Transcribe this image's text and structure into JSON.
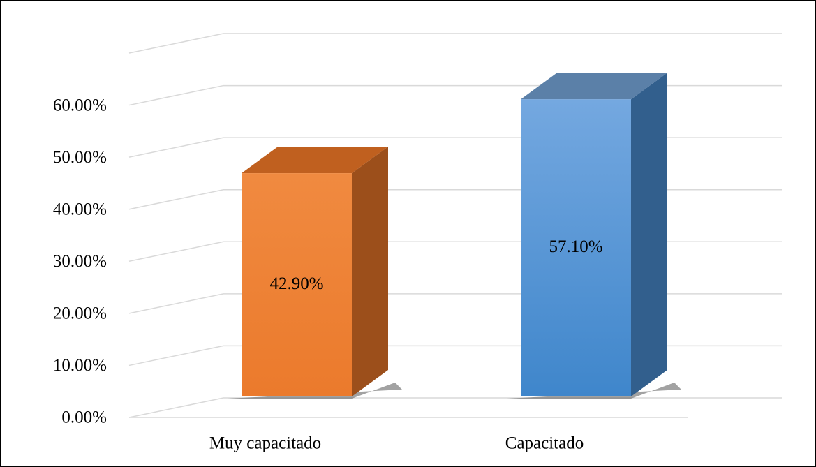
{
  "chart_data": {
    "type": "bar3d",
    "categories": [
      "Muy capacitado",
      "Capacitado"
    ],
    "values": [
      42.9,
      57.1
    ],
    "value_labels": [
      "42.90%",
      "57.10%"
    ],
    "colors": [
      "#ed7d31",
      "#5b9bd5"
    ],
    "ylim": [
      0,
      70
    ],
    "yticks": [
      {
        "value": 0,
        "label": "0.00%"
      },
      {
        "value": 10,
        "label": "10.00%"
      },
      {
        "value": 20,
        "label": "20.00%"
      },
      {
        "value": 30,
        "label": "30.00%"
      },
      {
        "value": 40,
        "label": "40.00%"
      },
      {
        "value": 50,
        "label": "50.00%"
      },
      {
        "value": 60,
        "label": "60.00%"
      }
    ],
    "grid": true
  }
}
